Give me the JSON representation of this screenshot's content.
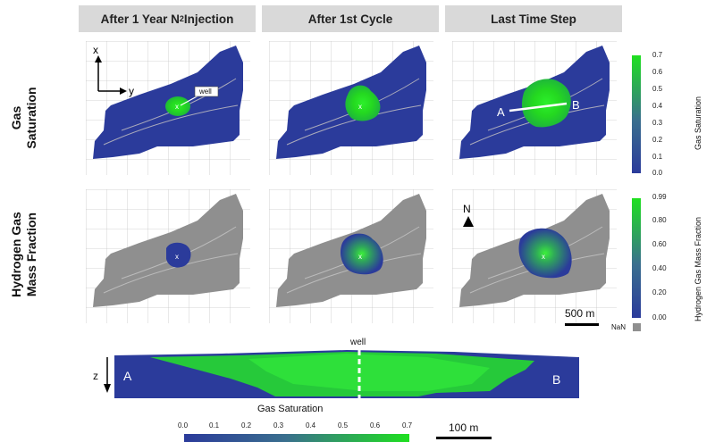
{
  "headers": [
    {
      "pre": "After 1 Year N",
      "sub": "2",
      "post": " Injection"
    },
    {
      "pre": "After 1st Cycle",
      "sub": "",
      "post": ""
    },
    {
      "pre": "Last Time Step",
      "sub": "",
      "post": ""
    }
  ],
  "rows": [
    {
      "line1": "Gas",
      "line2": "Saturation"
    },
    {
      "line1": "Hydrogen Gas",
      "line2": "Mass Fraction"
    }
  ],
  "axes": {
    "x": "x",
    "y": "y",
    "z": "z"
  },
  "labels": {
    "well": "well",
    "well_marker": "x",
    "point_a": "A",
    "point_b": "B",
    "north": "N",
    "scale_map": "500 m",
    "scale_section": "100 m",
    "nan": "NaN"
  },
  "colorbar_gas": {
    "title": "Gas Saturation",
    "ticks": [
      "0.7",
      "0.6",
      "0.5",
      "0.4",
      "0.3",
      "0.2",
      "0.1",
      "0.0"
    ]
  },
  "colorbar_h2": {
    "title": "Hydrogen Gas Mass Fraction",
    "ticks": [
      "0.99",
      "0.80",
      "0.60",
      "0.40",
      "0.20",
      "0.00"
    ]
  },
  "colorbar_bottom": {
    "title": "Gas Saturation",
    "ticks": [
      "0.0",
      "0.1",
      "0.2",
      "0.3",
      "0.4",
      "0.5",
      "0.6",
      "0.7"
    ]
  },
  "colors": {
    "low": "#2b3b9b",
    "high": "#1fe020",
    "nan": "#8f8f8f",
    "header_bg": "#d9d9d9"
  }
}
